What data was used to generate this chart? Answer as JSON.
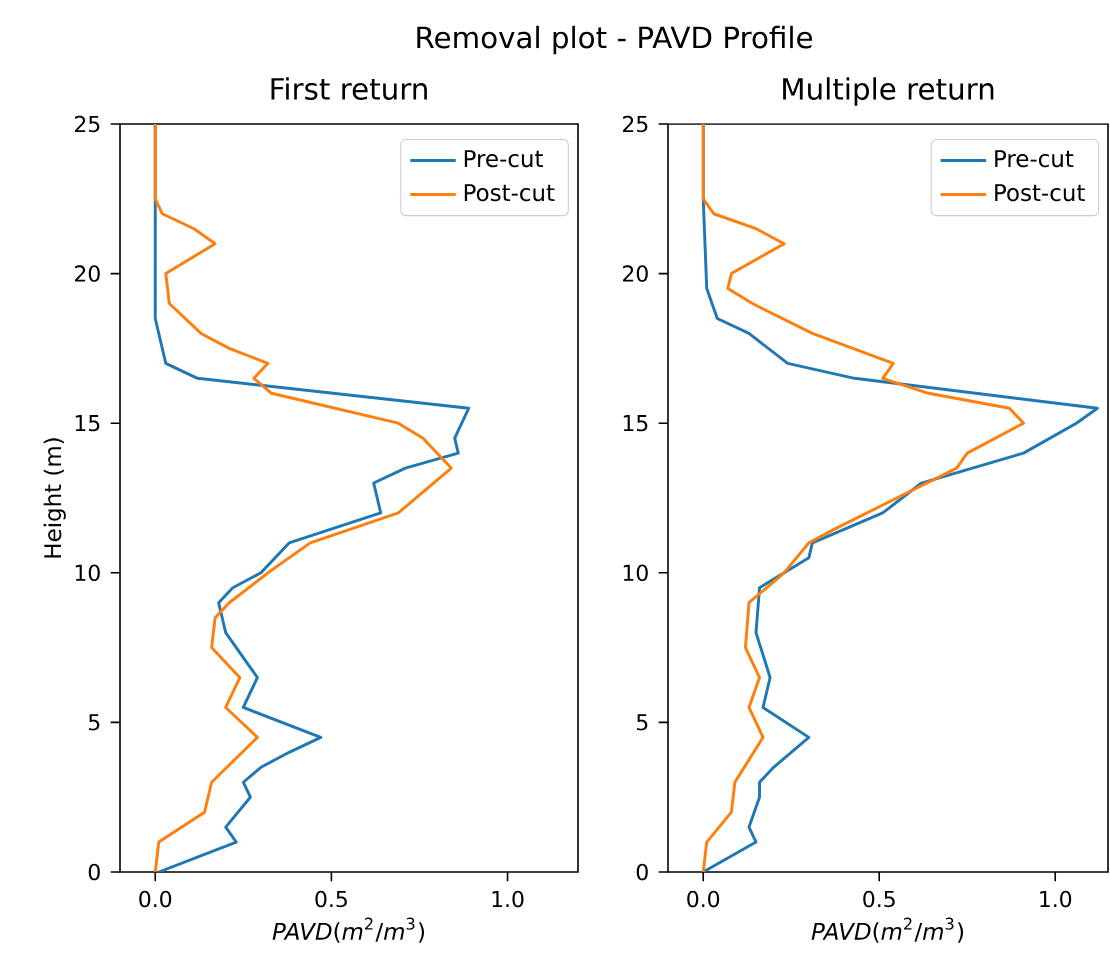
{
  "chart_data": [
    {
      "type": "line",
      "title": "Removal plot - PAVD Profile",
      "subtitle": "First return",
      "xlabel": "*PAVD*(*m*$^{2}$/*m*$^{3}$)",
      "ylabel": "Height (m)",
      "xlim": [
        -0.1,
        1.2
      ],
      "ylim": [
        0,
        25
      ],
      "xticks": [
        {
          "value": 0,
          "label": "0.0"
        },
        {
          "value": 0.5,
          "label": "0.5"
        },
        {
          "value": 1,
          "label": "1.0"
        }
      ],
      "yticks": [
        0,
        5,
        10,
        15,
        20,
        25
      ],
      "legend": "top right",
      "grid": false,
      "series": [
        {
          "name": "Pre-cut",
          "color": "#1f77b4",
          "x": [
            0.01,
            0.23,
            0.2,
            0.27,
            0.25,
            0.3,
            0.38,
            0.47,
            0.25,
            0.29,
            0.26,
            0.2,
            0.18,
            0.22,
            0.3,
            0.38,
            0.64,
            0.62,
            0.71,
            0.86,
            0.85,
            0.89,
            0.12,
            0.03,
            0.0,
            0.0
          ],
          "values": [
            0,
            1,
            1.5,
            2.5,
            3,
            3.5,
            4,
            4.5,
            5.5,
            6.5,
            7,
            8,
            9,
            9.5,
            10,
            11,
            12,
            13,
            13.5,
            14,
            14.5,
            15.5,
            16.5,
            17,
            18.5,
            25
          ]
        },
        {
          "name": "Post-cut",
          "color": "#ff7f0e",
          "x": [
            0.0,
            0.01,
            0.14,
            0.16,
            0.29,
            0.2,
            0.24,
            0.16,
            0.17,
            0.21,
            0.32,
            0.44,
            0.69,
            0.84,
            0.76,
            0.69,
            0.33,
            0.28,
            0.32,
            0.21,
            0.13,
            0.04,
            0.03,
            0.17,
            0.11,
            0.02,
            0.0,
            0.0
          ],
          "values": [
            0,
            1,
            2,
            3,
            4.5,
            5.5,
            6.5,
            7.5,
            8.5,
            9,
            10,
            11,
            12,
            13.5,
            14.5,
            15,
            16,
            16.5,
            17,
            17.5,
            18,
            19,
            20,
            21,
            21.5,
            22,
            22.5,
            25
          ]
        }
      ]
    },
    {
      "type": "line",
      "subtitle": "Multiple return",
      "xlabel": "*PAVD*(*m*$^{2}$/*m*$^{3}$)",
      "xlim": [
        -0.1,
        1.15
      ],
      "ylim": [
        0,
        25
      ],
      "xticks": [
        {
          "value": 0,
          "label": "0.0"
        },
        {
          "value": 0.5,
          "label": "0.5"
        },
        {
          "value": 1,
          "label": "1.0"
        }
      ],
      "yticks": [
        0,
        5,
        10,
        15,
        20,
        25
      ],
      "legend": "top right",
      "grid": false,
      "series": [
        {
          "name": "Pre-cut",
          "color": "#1f77b4",
          "x": [
            0.0,
            0.15,
            0.13,
            0.16,
            0.16,
            0.2,
            0.25,
            0.3,
            0.17,
            0.19,
            0.15,
            0.16,
            0.3,
            0.31,
            0.51,
            0.62,
            0.91,
            1.06,
            1.12,
            0.43,
            0.24,
            0.13,
            0.04,
            0.01,
            0.0,
            0.0
          ],
          "values": [
            0,
            1,
            1.5,
            2.5,
            3,
            3.5,
            4,
            4.5,
            5.5,
            6.5,
            8,
            9.5,
            10.5,
            11,
            12,
            13,
            14,
            15,
            15.5,
            16.5,
            17,
            18,
            18.5,
            19.5,
            22.5,
            25
          ]
        },
        {
          "name": "Post-cut",
          "color": "#ff7f0e",
          "x": [
            0.0,
            0.01,
            0.08,
            0.09,
            0.17,
            0.13,
            0.16,
            0.12,
            0.13,
            0.18,
            0.23,
            0.3,
            0.38,
            0.55,
            0.72,
            0.75,
            0.91,
            0.87,
            0.64,
            0.51,
            0.54,
            0.31,
            0.14,
            0.07,
            0.08,
            0.23,
            0.15,
            0.03,
            0.0,
            0.0
          ],
          "values": [
            0,
            1,
            2,
            3,
            4.5,
            5.5,
            6.5,
            7.5,
            9,
            9.5,
            10,
            11,
            11.5,
            12.5,
            13.5,
            14,
            15,
            15.5,
            16,
            16.5,
            17,
            18,
            19,
            19.5,
            20,
            21,
            21.5,
            22,
            22.5,
            25
          ]
        }
      ]
    }
  ]
}
